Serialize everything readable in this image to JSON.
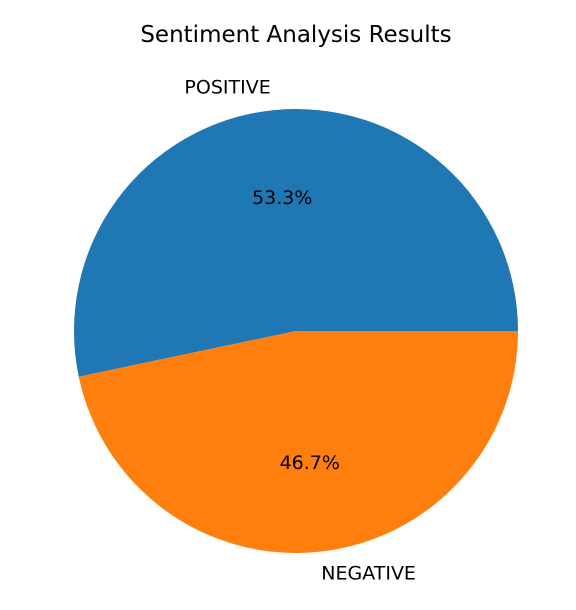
{
  "chart_data": {
    "type": "pie",
    "title": "Sentiment Analysis Results",
    "categories": [
      "POSITIVE",
      "NEGATIVE"
    ],
    "values": [
      53.3,
      46.7
    ],
    "labels": [
      "53.3%",
      "46.7%"
    ],
    "colors": [
      "#1f77b4",
      "#ff7f0e"
    ],
    "start_angle_deg": 0,
    "direction": "counterclockwise"
  }
}
